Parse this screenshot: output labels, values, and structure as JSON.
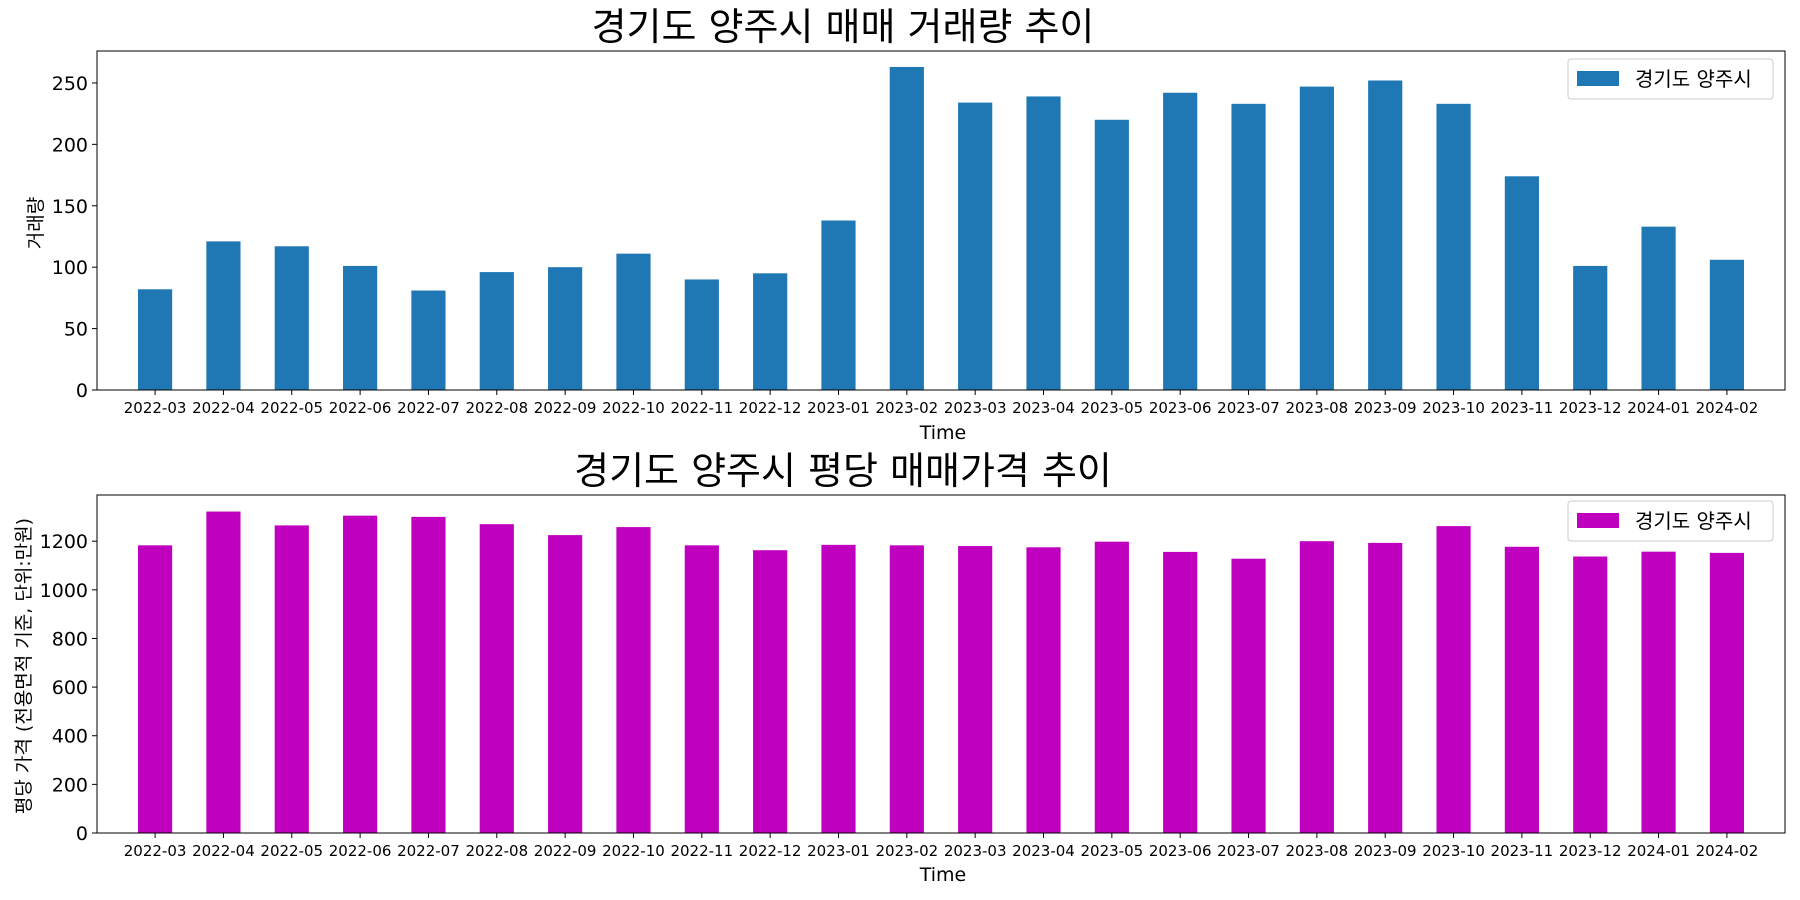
{
  "chart_data": [
    {
      "type": "bar",
      "title": "경기도 양주시 매매 거래량 추이",
      "xlabel": "Time",
      "ylabel": "거래량",
      "categories": [
        "2022-03",
        "2022-04",
        "2022-05",
        "2022-06",
        "2022-07",
        "2022-08",
        "2022-09",
        "2022-10",
        "2022-11",
        "2022-12",
        "2023-01",
        "2023-02",
        "2023-03",
        "2023-04",
        "2023-05",
        "2023-06",
        "2023-07",
        "2023-08",
        "2023-09",
        "2023-10",
        "2023-11",
        "2023-12",
        "2024-01",
        "2024-02"
      ],
      "series": [
        {
          "name": "경기도 양주시",
          "color": "#1f77b4",
          "values": [
            82,
            121,
            117,
            101,
            81,
            96,
            100,
            111,
            90,
            95,
            138,
            263,
            234,
            239,
            220,
            242,
            233,
            247,
            252,
            233,
            174,
            101,
            133,
            106
          ]
        }
      ],
      "ylim": [
        0,
        276
      ],
      "yticks": [
        0,
        50,
        100,
        150,
        200,
        250
      ],
      "grid": false,
      "legend": "top-right"
    },
    {
      "type": "bar",
      "title": "경기도 양주시 평당 매매가격 추이",
      "xlabel": "Time",
      "ylabel": "평당 가격 (전용면적 기준, 단위:만원)",
      "categories": [
        "2022-03",
        "2022-04",
        "2022-05",
        "2022-06",
        "2022-07",
        "2022-08",
        "2022-09",
        "2022-10",
        "2022-11",
        "2022-12",
        "2023-01",
        "2023-02",
        "2023-03",
        "2023-04",
        "2023-05",
        "2023-06",
        "2023-07",
        "2023-08",
        "2023-09",
        "2023-10",
        "2023-11",
        "2023-12",
        "2024-01",
        "2024-02"
      ],
      "series": [
        {
          "name": "경기도 양주시",
          "color": "#bf00bf",
          "values": [
            1183,
            1322,
            1265,
            1305,
            1300,
            1270,
            1225,
            1258,
            1183,
            1163,
            1185,
            1183,
            1180,
            1175,
            1198,
            1156,
            1128,
            1200,
            1193,
            1262,
            1177,
            1137,
            1157,
            1152
          ]
        }
      ],
      "ylim": [
        0,
        1390
      ],
      "yticks": [
        0,
        200,
        400,
        600,
        800,
        1000,
        1200
      ],
      "grid": false,
      "legend": "top-right"
    }
  ]
}
